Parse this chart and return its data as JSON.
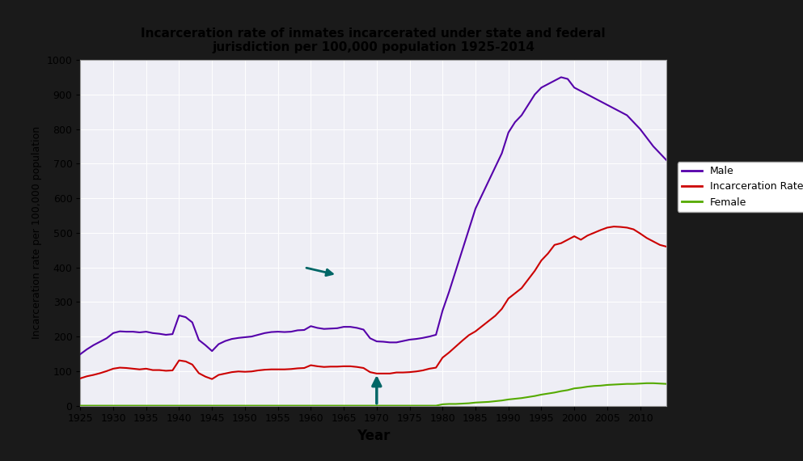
{
  "title": "Incarceration rate of inmates incarcerated under state and federal\njurisdiction per 100,000 population 1925-2014",
  "xlabel": "Year",
  "ylabel": "Incarceration rate per 100,000 population",
  "xlim": [
    1925,
    2014
  ],
  "ylim": [
    0,
    1000
  ],
  "yticks": [
    0,
    100,
    200,
    300,
    400,
    500,
    600,
    700,
    800,
    900,
    1000
  ],
  "xticks": [
    1925,
    1930,
    1935,
    1940,
    1945,
    1950,
    1955,
    1960,
    1965,
    1970,
    1975,
    1980,
    1985,
    1990,
    1995,
    2000,
    2005,
    2010
  ],
  "bg_color": "#eeeef5",
  "grid_color": "#ffffff",
  "male_color": "#5500aa",
  "total_color": "#cc0000",
  "female_color": "#55aa00",
  "arrow_color": "#006666",
  "outer_bg": "#1a1a1a",
  "years": [
    1925,
    1926,
    1927,
    1928,
    1929,
    1930,
    1931,
    1932,
    1933,
    1934,
    1935,
    1936,
    1937,
    1938,
    1939,
    1940,
    1941,
    1942,
    1943,
    1944,
    1945,
    1946,
    1947,
    1948,
    1949,
    1950,
    1951,
    1952,
    1953,
    1954,
    1955,
    1956,
    1957,
    1958,
    1959,
    1960,
    1961,
    1962,
    1963,
    1964,
    1965,
    1966,
    1967,
    1968,
    1969,
    1970,
    1971,
    1972,
    1973,
    1974,
    1975,
    1976,
    1977,
    1978,
    1979,
    1980,
    1981,
    1982,
    1983,
    1984,
    1985,
    1986,
    1987,
    1988,
    1989,
    1990,
    1991,
    1992,
    1993,
    1994,
    1995,
    1996,
    1997,
    1998,
    1999,
    2000,
    2001,
    2002,
    2003,
    2004,
    2005,
    2006,
    2007,
    2008,
    2009,
    2010,
    2011,
    2012,
    2013,
    2014
  ],
  "male": [
    149,
    163,
    175,
    185,
    195,
    210,
    215,
    214,
    214,
    212,
    214,
    210,
    208,
    205,
    207,
    261,
    256,
    241,
    190,
    175,
    158,
    178,
    187,
    193,
    196,
    198,
    200,
    205,
    210,
    213,
    214,
    213,
    214,
    218,
    219,
    230,
    225,
    222,
    223,
    224,
    228,
    228,
    225,
    220,
    195,
    186,
    185,
    183,
    183,
    187,
    191,
    193,
    196,
    200,
    205,
    275,
    330,
    390,
    450,
    510,
    570,
    610,
    650,
    690,
    730,
    790,
    820,
    840,
    870,
    900,
    920,
    930,
    940,
    950,
    945,
    920,
    910,
    900,
    890,
    880,
    870,
    860,
    850,
    840,
    820,
    800,
    775,
    750,
    730,
    710
  ],
  "total": [
    79,
    85,
    89,
    94,
    100,
    107,
    110,
    109,
    107,
    105,
    107,
    103,
    103,
    101,
    102,
    131,
    128,
    119,
    94,
    84,
    77,
    89,
    93,
    97,
    99,
    98,
    99,
    102,
    104,
    105,
    105,
    105,
    106,
    108,
    109,
    117,
    114,
    112,
    113,
    113,
    114,
    114,
    112,
    109,
    97,
    93,
    93,
    93,
    96,
    96,
    97,
    99,
    102,
    107,
    110,
    139,
    154,
    171,
    188,
    204,
    215,
    230,
    245,
    260,
    280,
    310,
    325,
    340,
    365,
    390,
    420,
    440,
    465,
    470,
    480,
    490,
    480,
    492,
    500,
    508,
    515,
    518,
    517,
    515,
    510,
    498,
    485,
    475,
    465,
    460
  ],
  "female": [
    0,
    0,
    0,
    0,
    0,
    0,
    0,
    0,
    0,
    0,
    0,
    0,
    0,
    0,
    0,
    0,
    0,
    0,
    0,
    0,
    0,
    0,
    0,
    0,
    0,
    0,
    0,
    0,
    0,
    0,
    0,
    0,
    0,
    0,
    0,
    0,
    0,
    0,
    0,
    0,
    0,
    0,
    0,
    0,
    0,
    0,
    0,
    0,
    0,
    0,
    0,
    0,
    0,
    0,
    0,
    4,
    5,
    5,
    6,
    7,
    9,
    10,
    11,
    13,
    15,
    18,
    20,
    22,
    25,
    28,
    32,
    35,
    38,
    42,
    45,
    50,
    52,
    55,
    57,
    58,
    60,
    61,
    62,
    63,
    63,
    64,
    65,
    65,
    64,
    63
  ],
  "legend_entries": [
    "Male",
    "Incarceration Rate",
    "Female"
  ],
  "legend_colors": [
    "#5500aa",
    "#cc0000",
    "#55aa00"
  ]
}
